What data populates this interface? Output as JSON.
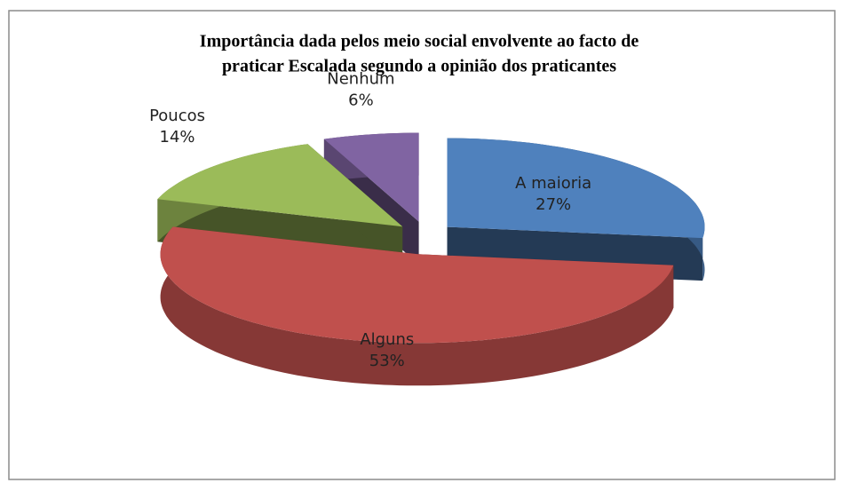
{
  "chart_data": {
    "type": "pie",
    "title": [
      "Importância dada pelos meio social envolvente ao facto de",
      "praticar Escalada segundo a opinião dos praticantes"
    ],
    "categories": [
      "A maioria",
      "Alguns",
      "Poucos",
      "Nenhum"
    ],
    "values": [
      27,
      53,
      14,
      6
    ],
    "value_labels": [
      "27%",
      "53%",
      "14%",
      "6%"
    ],
    "colors": [
      "#4f81bd",
      "#c0504d",
      "#9bbb59",
      "#8064a2"
    ]
  }
}
